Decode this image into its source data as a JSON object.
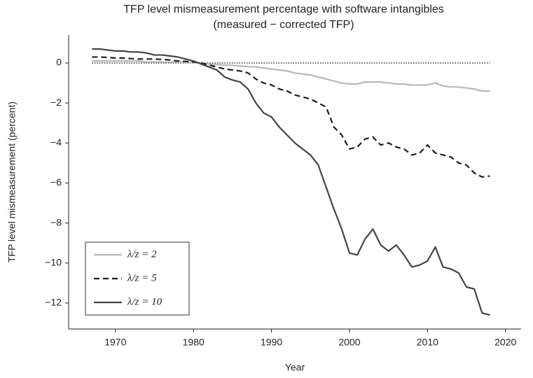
{
  "chart_data": {
    "type": "line",
    "title": "TFP level mismeasurement percentage with software intangibles",
    "subtitle": "(measured − corrected TFP)",
    "x_label": "Year",
    "y_label": "TFP level mismeasurement  (percent)",
    "x": [
      1967,
      1968,
      1969,
      1970,
      1971,
      1972,
      1973,
      1974,
      1975,
      1976,
      1977,
      1978,
      1979,
      1980,
      1981,
      1982,
      1983,
      1984,
      1985,
      1986,
      1987,
      1988,
      1989,
      1990,
      1991,
      1992,
      1993,
      1994,
      1995,
      1996,
      1997,
      1998,
      1999,
      2000,
      2001,
      2002,
      2003,
      2004,
      2005,
      2006,
      2007,
      2008,
      2009,
      2010,
      2011,
      2012,
      2013,
      2014,
      2015,
      2016,
      2017,
      2018
    ],
    "series": [
      {
        "name": "λ/z = 2",
        "color": "#b8b8b8",
        "dash": "solid",
        "values": [
          0.1,
          0.1,
          0.1,
          0.1,
          0.1,
          0.1,
          0.1,
          0.05,
          0.05,
          0.05,
          0.05,
          0.05,
          0.03,
          0.02,
          0,
          -0.05,
          -0.08,
          -0.1,
          -0.12,
          -0.15,
          -0.18,
          -0.2,
          -0.25,
          -0.3,
          -0.35,
          -0.4,
          -0.5,
          -0.55,
          -0.6,
          -0.7,
          -0.8,
          -0.9,
          -1.0,
          -1.05,
          -1.05,
          -0.95,
          -0.95,
          -0.95,
          -1.0,
          -1.05,
          -1.05,
          -1.1,
          -1.1,
          -1.1,
          -1.0,
          -1.15,
          -1.2,
          -1.2,
          -1.25,
          -1.3,
          -1.4,
          -1.4
        ]
      },
      {
        "name": "λ/z = 5",
        "color": "#1e1e1e",
        "dash": "dashed",
        "values": [
          0.3,
          0.3,
          0.28,
          0.25,
          0.25,
          0.22,
          0.2,
          0.2,
          0.2,
          0.18,
          0.15,
          0.1,
          0.08,
          0.05,
          0,
          -0.1,
          -0.2,
          -0.3,
          -0.35,
          -0.4,
          -0.5,
          -0.8,
          -1.0,
          -1.1,
          -1.3,
          -1.4,
          -1.6,
          -1.7,
          -1.8,
          -2.0,
          -2.2,
          -3.2,
          -3.6,
          -4.3,
          -4.2,
          -3.8,
          -3.7,
          -4.1,
          -4.0,
          -4.2,
          -4.3,
          -4.6,
          -4.5,
          -4.1,
          -4.5,
          -4.6,
          -4.7,
          -5.0,
          -5.1,
          -5.5,
          -5.7,
          -5.65
        ]
      },
      {
        "name": "λ/z = 10",
        "color": "#444444",
        "dash": "solid",
        "values": [
          0.7,
          0.7,
          0.65,
          0.6,
          0.6,
          0.55,
          0.55,
          0.5,
          0.4,
          0.4,
          0.35,
          0.3,
          0.2,
          0.1,
          -0.05,
          -0.2,
          -0.35,
          -0.7,
          -0.85,
          -0.95,
          -1.3,
          -2.0,
          -2.5,
          -2.7,
          -3.2,
          -3.6,
          -4.0,
          -4.3,
          -4.6,
          -5.1,
          -6.2,
          -7.3,
          -8.3,
          -9.5,
          -9.6,
          -8.8,
          -8.3,
          -9.1,
          -9.4,
          -9.1,
          -9.6,
          -10.2,
          -10.1,
          -9.9,
          -9.2,
          -10.2,
          -10.3,
          -10.5,
          -11.2,
          -11.3,
          -12.5,
          -12.6
        ]
      }
    ],
    "xlim": [
      1964,
      2022
    ],
    "xticks": [
      1970,
      1980,
      1990,
      2000,
      2010,
      2020
    ],
    "ylim": [
      -13.3,
      1.4
    ],
    "yticks": [
      {
        "value": -12,
        "label": "−12"
      },
      {
        "value": -10,
        "label": "−10"
      },
      {
        "value": -8,
        "label": "−8"
      },
      {
        "value": -6,
        "label": "−6"
      },
      {
        "value": -4,
        "label": "−4"
      },
      {
        "value": -2,
        "label": "−2"
      },
      0
    ],
    "grid": false,
    "zero_line": true,
    "legend": "lower left"
  }
}
